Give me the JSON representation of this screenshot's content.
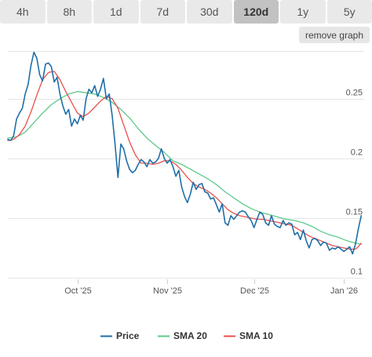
{
  "tabs": [
    {
      "label": "4h",
      "active": false
    },
    {
      "label": "8h",
      "active": false
    },
    {
      "label": "1d",
      "active": false
    },
    {
      "label": "7d",
      "active": false
    },
    {
      "label": "30d",
      "active": false
    },
    {
      "label": "120d",
      "active": true
    },
    {
      "label": "1y",
      "active": false
    },
    {
      "label": "5y",
      "active": false
    }
  ],
  "remove_graph_label": "remove graph",
  "chart_data": {
    "type": "line",
    "title": "",
    "xlabel": "",
    "ylabel": "",
    "x_range": [
      "2025-09-07",
      "2026-01-08"
    ],
    "ylim": [
      0.1,
      0.29
    ],
    "grid": true,
    "legend_position": "bottom-center",
    "y_ticks": [
      {
        "value": 0.25,
        "label": "0.25"
      },
      {
        "value": 0.2,
        "label": "0.2"
      },
      {
        "value": 0.15,
        "label": "0.15"
      },
      {
        "value": 0.1,
        "label": "0.1"
      }
    ],
    "x_ticks": [
      {
        "date": "2025-10-01",
        "label": "Oct '25"
      },
      {
        "date": "2025-11-01",
        "label": "Nov '25"
      },
      {
        "date": "2025-12-01",
        "label": "Dec '25"
      },
      {
        "date": "2026-01-01",
        "label": "Jan '26"
      }
    ],
    "series": [
      {
        "name": "Price",
        "color": "#1f6fa8",
        "points": [
          [
            "2025-09-07",
            0.216
          ],
          [
            "2025-09-08",
            0.215
          ],
          [
            "2025-09-09",
            0.219
          ],
          [
            "2025-09-10",
            0.233
          ],
          [
            "2025-09-11",
            0.238
          ],
          [
            "2025-09-12",
            0.242
          ],
          [
            "2025-09-13",
            0.254
          ],
          [
            "2025-09-14",
            0.262
          ],
          [
            "2025-09-15",
            0.278
          ],
          [
            "2025-09-16",
            0.289
          ],
          [
            "2025-09-17",
            0.284
          ],
          [
            "2025-09-18",
            0.27
          ],
          [
            "2025-09-19",
            0.265
          ],
          [
            "2025-09-20",
            0.279
          ],
          [
            "2025-09-21",
            0.28
          ],
          [
            "2025-09-22",
            0.277
          ],
          [
            "2025-09-23",
            0.264
          ],
          [
            "2025-09-24",
            0.268
          ],
          [
            "2025-09-25",
            0.254
          ],
          [
            "2025-09-26",
            0.244
          ],
          [
            "2025-09-27",
            0.237
          ],
          [
            "2025-09-28",
            0.241
          ],
          [
            "2025-09-29",
            0.227
          ],
          [
            "2025-09-30",
            0.233
          ],
          [
            "2025-10-01",
            0.229
          ],
          [
            "2025-10-02",
            0.236
          ],
          [
            "2025-10-03",
            0.232
          ],
          [
            "2025-10-04",
            0.25
          ],
          [
            "2025-10-05",
            0.258
          ],
          [
            "2025-10-06",
            0.255
          ],
          [
            "2025-10-07",
            0.261
          ],
          [
            "2025-10-08",
            0.252
          ],
          [
            "2025-10-09",
            0.258
          ],
          [
            "2025-10-10",
            0.267
          ],
          [
            "2025-10-11",
            0.25
          ],
          [
            "2025-10-12",
            0.254
          ],
          [
            "2025-10-13",
            0.236
          ],
          [
            "2025-10-14",
            0.212
          ],
          [
            "2025-10-15",
            0.184
          ],
          [
            "2025-10-16",
            0.212
          ],
          [
            "2025-10-17",
            0.208
          ],
          [
            "2025-10-18",
            0.198
          ],
          [
            "2025-10-19",
            0.191
          ],
          [
            "2025-10-20",
            0.188
          ],
          [
            "2025-10-21",
            0.19
          ],
          [
            "2025-10-22",
            0.195
          ],
          [
            "2025-10-23",
            0.199
          ],
          [
            "2025-10-24",
            0.197
          ],
          [
            "2025-10-25",
            0.193
          ],
          [
            "2025-10-26",
            0.199
          ],
          [
            "2025-10-27",
            0.196
          ],
          [
            "2025-10-28",
            0.197
          ],
          [
            "2025-10-29",
            0.2
          ],
          [
            "2025-10-30",
            0.208
          ],
          [
            "2025-10-31",
            0.2
          ],
          [
            "2025-11-01",
            0.196
          ],
          [
            "2025-11-02",
            0.199
          ],
          [
            "2025-11-03",
            0.193
          ],
          [
            "2025-11-04",
            0.185
          ],
          [
            "2025-11-05",
            0.19
          ],
          [
            "2025-11-06",
            0.176
          ],
          [
            "2025-11-07",
            0.168
          ],
          [
            "2025-11-08",
            0.163
          ],
          [
            "2025-11-09",
            0.17
          ],
          [
            "2025-11-10",
            0.18
          ],
          [
            "2025-11-11",
            0.174
          ],
          [
            "2025-11-12",
            0.178
          ],
          [
            "2025-11-13",
            0.179
          ],
          [
            "2025-11-14",
            0.172
          ],
          [
            "2025-11-15",
            0.171
          ],
          [
            "2025-11-16",
            0.166
          ],
          [
            "2025-11-17",
            0.167
          ],
          [
            "2025-11-18",
            0.161
          ],
          [
            "2025-11-19",
            0.155
          ],
          [
            "2025-11-20",
            0.162
          ],
          [
            "2025-11-21",
            0.146
          ],
          [
            "2025-11-22",
            0.144
          ],
          [
            "2025-11-23",
            0.152
          ],
          [
            "2025-11-24",
            0.149
          ],
          [
            "2025-11-25",
            0.152
          ],
          [
            "2025-11-26",
            0.155
          ],
          [
            "2025-11-27",
            0.156
          ],
          [
            "2025-11-28",
            0.155
          ],
          [
            "2025-11-29",
            0.151
          ],
          [
            "2025-11-30",
            0.148
          ],
          [
            "2025-12-01",
            0.142
          ],
          [
            "2025-12-02",
            0.149
          ],
          [
            "2025-12-03",
            0.155
          ],
          [
            "2025-12-04",
            0.153
          ],
          [
            "2025-12-05",
            0.146
          ],
          [
            "2025-12-06",
            0.144
          ],
          [
            "2025-12-07",
            0.152
          ],
          [
            "2025-12-08",
            0.145
          ],
          [
            "2025-12-09",
            0.143
          ],
          [
            "2025-12-10",
            0.142
          ],
          [
            "2025-12-11",
            0.148
          ],
          [
            "2025-12-12",
            0.144
          ],
          [
            "2025-12-13",
            0.146
          ],
          [
            "2025-12-14",
            0.145
          ],
          [
            "2025-12-15",
            0.136
          ],
          [
            "2025-12-16",
            0.138
          ],
          [
            "2025-12-17",
            0.132
          ],
          [
            "2025-12-18",
            0.14
          ],
          [
            "2025-12-19",
            0.131
          ],
          [
            "2025-12-20",
            0.125
          ],
          [
            "2025-12-21",
            0.132
          ],
          [
            "2025-12-22",
            0.133
          ],
          [
            "2025-12-23",
            0.131
          ],
          [
            "2025-12-24",
            0.127
          ],
          [
            "2025-12-25",
            0.13
          ],
          [
            "2025-12-26",
            0.129
          ],
          [
            "2025-12-27",
            0.123
          ],
          [
            "2025-12-28",
            0.125
          ],
          [
            "2025-12-29",
            0.124
          ],
          [
            "2025-12-30",
            0.126
          ],
          [
            "2025-12-31",
            0.124
          ],
          [
            "2026-01-01",
            0.122
          ],
          [
            "2026-01-02",
            0.124
          ],
          [
            "2026-01-03",
            0.126
          ],
          [
            "2026-01-04",
            0.12
          ],
          [
            "2026-01-05",
            0.128
          ],
          [
            "2026-01-06",
            0.141
          ],
          [
            "2026-01-07",
            0.152
          ]
        ]
      },
      {
        "name": "SMA 20",
        "color": "#5ec98a",
        "points": [
          [
            "2025-09-07",
            0.217
          ],
          [
            "2025-09-10",
            0.218
          ],
          [
            "2025-09-13",
            0.222
          ],
          [
            "2025-09-16",
            0.23
          ],
          [
            "2025-09-19",
            0.238
          ],
          [
            "2025-09-22",
            0.245
          ],
          [
            "2025-09-25",
            0.25
          ],
          [
            "2025-09-28",
            0.254
          ],
          [
            "2025-10-01",
            0.256
          ],
          [
            "2025-10-04",
            0.255
          ],
          [
            "2025-10-07",
            0.254
          ],
          [
            "2025-10-10",
            0.251
          ],
          [
            "2025-10-13",
            0.247
          ],
          [
            "2025-10-16",
            0.241
          ],
          [
            "2025-10-19",
            0.234
          ],
          [
            "2025-10-22",
            0.225
          ],
          [
            "2025-10-25",
            0.217
          ],
          [
            "2025-10-28",
            0.211
          ],
          [
            "2025-10-31",
            0.205
          ],
          [
            "2025-11-03",
            0.198
          ],
          [
            "2025-11-06",
            0.195
          ],
          [
            "2025-11-09",
            0.191
          ],
          [
            "2025-11-12",
            0.187
          ],
          [
            "2025-11-15",
            0.183
          ],
          [
            "2025-11-18",
            0.178
          ],
          [
            "2025-11-21",
            0.172
          ],
          [
            "2025-11-24",
            0.167
          ],
          [
            "2025-11-27",
            0.162
          ],
          [
            "2025-11-30",
            0.158
          ],
          [
            "2025-12-03",
            0.155
          ],
          [
            "2025-12-06",
            0.153
          ],
          [
            "2025-12-09",
            0.151
          ],
          [
            "2025-12-12",
            0.149
          ],
          [
            "2025-12-15",
            0.148
          ],
          [
            "2025-12-18",
            0.146
          ],
          [
            "2025-12-21",
            0.143
          ],
          [
            "2025-12-24",
            0.139
          ],
          [
            "2025-12-27",
            0.136
          ],
          [
            "2025-12-30",
            0.134
          ],
          [
            "2026-01-02",
            0.131
          ],
          [
            "2026-01-05",
            0.129
          ],
          [
            "2026-01-07",
            0.128
          ]
        ]
      },
      {
        "name": "SMA 10",
        "color": "#e8504c",
        "points": [
          [
            "2025-09-07",
            0.215
          ],
          [
            "2025-09-09",
            0.216
          ],
          [
            "2025-09-11",
            0.22
          ],
          [
            "2025-09-13",
            0.227
          ],
          [
            "2025-09-15",
            0.239
          ],
          [
            "2025-09-17",
            0.253
          ],
          [
            "2025-09-19",
            0.266
          ],
          [
            "2025-09-21",
            0.272
          ],
          [
            "2025-09-23",
            0.273
          ],
          [
            "2025-09-25",
            0.266
          ],
          [
            "2025-09-27",
            0.256
          ],
          [
            "2025-09-29",
            0.247
          ],
          [
            "2025-10-01",
            0.238
          ],
          [
            "2025-10-03",
            0.235
          ],
          [
            "2025-10-05",
            0.238
          ],
          [
            "2025-10-07",
            0.243
          ],
          [
            "2025-10-09",
            0.248
          ],
          [
            "2025-10-11",
            0.252
          ],
          [
            "2025-10-13",
            0.25
          ],
          [
            "2025-10-15",
            0.242
          ],
          [
            "2025-10-17",
            0.228
          ],
          [
            "2025-10-19",
            0.214
          ],
          [
            "2025-10-21",
            0.203
          ],
          [
            "2025-10-23",
            0.196
          ],
          [
            "2025-10-25",
            0.196
          ],
          [
            "2025-10-27",
            0.195
          ],
          [
            "2025-10-29",
            0.196
          ],
          [
            "2025-10-31",
            0.198
          ],
          [
            "2025-11-02",
            0.198
          ],
          [
            "2025-11-04",
            0.195
          ],
          [
            "2025-11-06",
            0.19
          ],
          [
            "2025-11-08",
            0.184
          ],
          [
            "2025-11-10",
            0.179
          ],
          [
            "2025-11-12",
            0.176
          ],
          [
            "2025-11-14",
            0.174
          ],
          [
            "2025-11-16",
            0.171
          ],
          [
            "2025-11-18",
            0.167
          ],
          [
            "2025-11-20",
            0.162
          ],
          [
            "2025-11-22",
            0.157
          ],
          [
            "2025-11-24",
            0.154
          ],
          [
            "2025-11-26",
            0.152
          ],
          [
            "2025-11-28",
            0.151
          ],
          [
            "2025-11-30",
            0.15
          ],
          [
            "2025-12-02",
            0.149
          ],
          [
            "2025-12-04",
            0.149
          ],
          [
            "2025-12-06",
            0.148
          ],
          [
            "2025-12-08",
            0.147
          ],
          [
            "2025-12-10",
            0.146
          ],
          [
            "2025-12-12",
            0.145
          ],
          [
            "2025-12-14",
            0.144
          ],
          [
            "2025-12-16",
            0.141
          ],
          [
            "2025-12-18",
            0.138
          ],
          [
            "2025-12-20",
            0.135
          ],
          [
            "2025-12-22",
            0.133
          ],
          [
            "2025-12-24",
            0.131
          ],
          [
            "2025-12-26",
            0.129
          ],
          [
            "2025-12-28",
            0.127
          ],
          [
            "2025-12-30",
            0.126
          ],
          [
            "2026-01-01",
            0.125
          ],
          [
            "2026-01-03",
            0.124
          ],
          [
            "2026-01-05",
            0.124
          ],
          [
            "2026-01-06",
            0.126
          ],
          [
            "2026-01-07",
            0.129
          ]
        ]
      }
    ]
  }
}
